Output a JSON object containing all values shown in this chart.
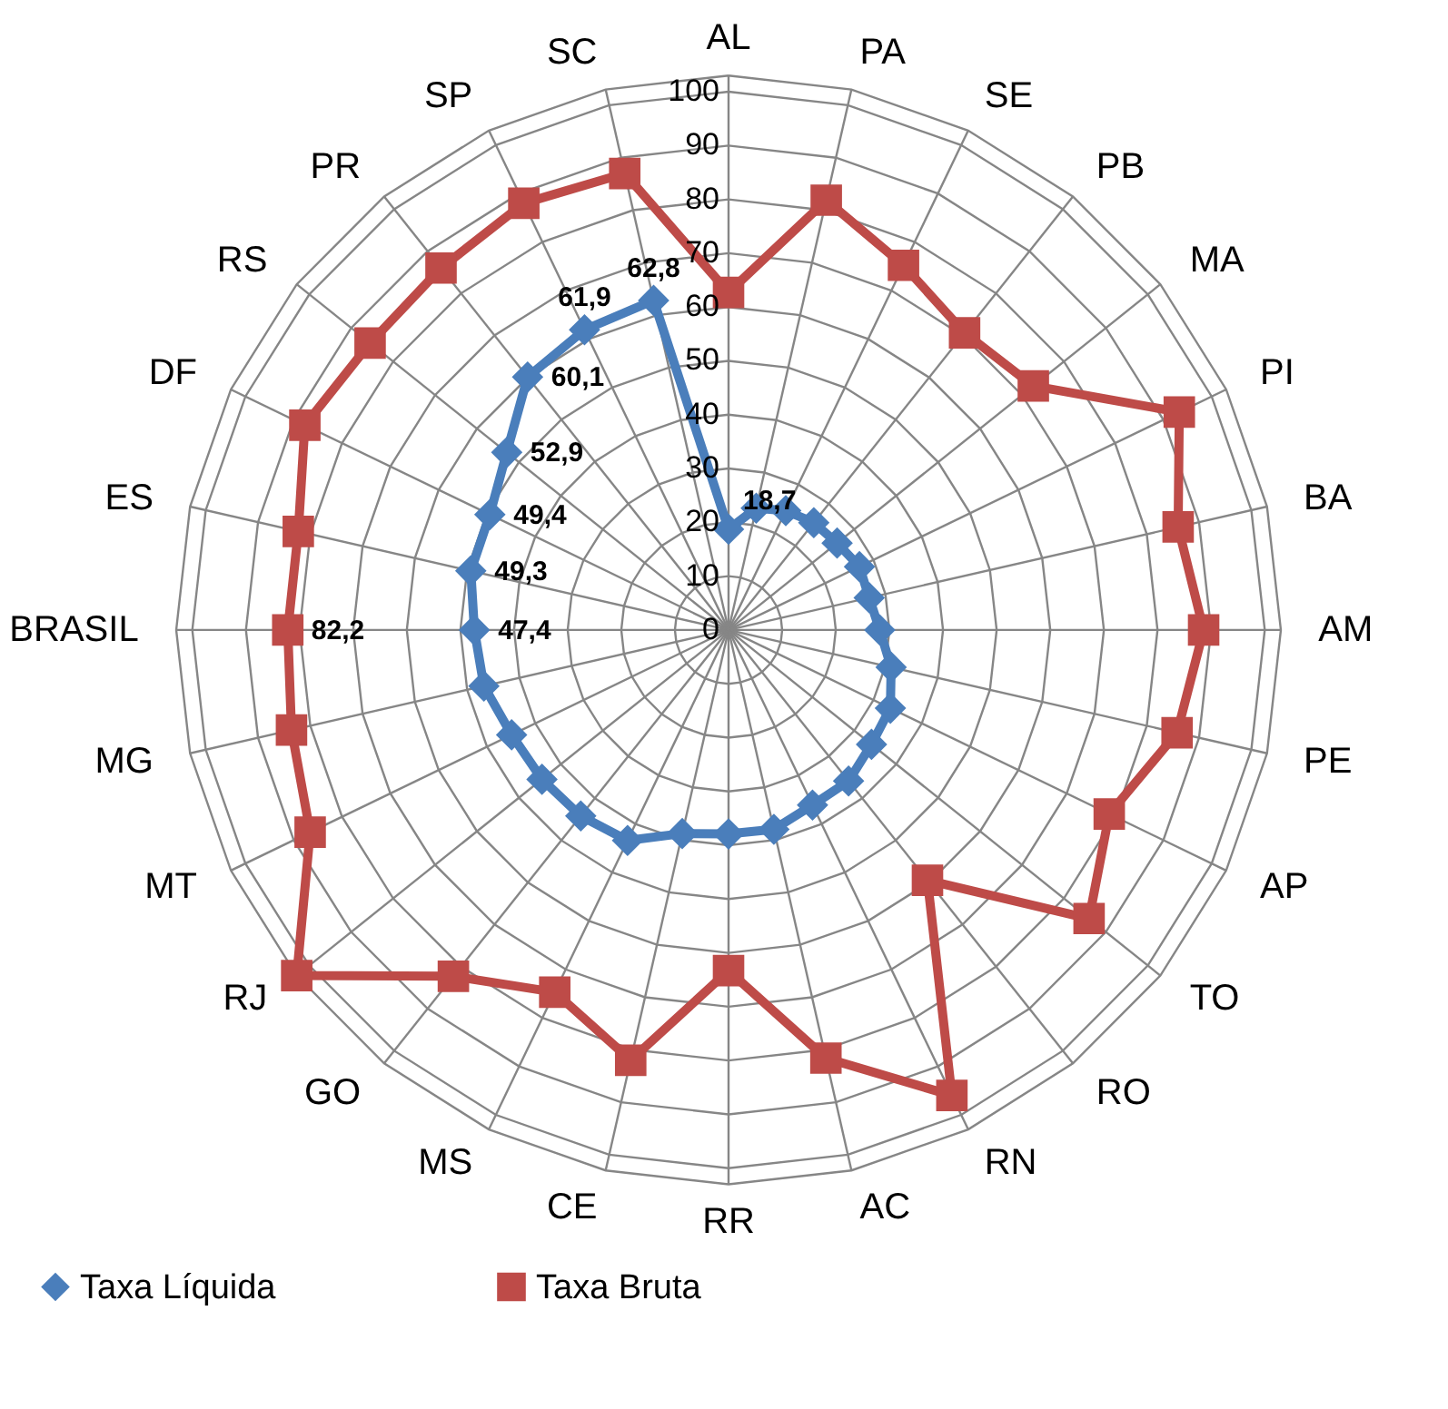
{
  "chart_data": {
    "type": "radar",
    "categories": [
      "AL",
      "PA",
      "SE",
      "PB",
      "MA",
      "PI",
      "BA",
      "AM",
      "PE",
      "AP",
      "TO",
      "RO",
      "RN",
      "AC",
      "RR",
      "CE",
      "MS",
      "GO",
      "RJ",
      "MT",
      "MG",
      "BRASIL",
      "ES",
      "DF",
      "RS",
      "PR",
      "SP",
      "SC"
    ],
    "series": [
      {
        "name": "Taxa Líquida",
        "color": "#4a7ebb",
        "marker": "diamond",
        "values": [
          18.7,
          23.2,
          24.6,
          25.5,
          25.9,
          27.1,
          26.9,
          28.2,
          31.1,
          33.5,
          34.1,
          35.9,
          36.1,
          38,
          37.9,
          38.8,
          43.4,
          44.2,
          44.5,
          44.9,
          46.8,
          47.4,
          49.3,
          49.4,
          52.9,
          60.1,
          61.9,
          62.8
        ],
        "value_labels": [
          "18,7",
          null,
          null,
          null,
          null,
          null,
          null,
          null,
          null,
          null,
          null,
          null,
          null,
          null,
          null,
          null,
          null,
          null,
          null,
          null,
          null,
          "47,4",
          "49,3",
          "49,4",
          "52,9",
          "60,1",
          "61,9",
          "62,8"
        ]
      },
      {
        "name": "Taxa Bruta",
        "color": "#be4b48",
        "marker": "square",
        "values": [
          62.7,
          81.9,
          75.2,
          70.6,
          72.7,
          93.3,
          86,
          88.6,
          85.8,
          78.8,
          86,
          59.5,
          96,
          81.6,
          63.3,
          82,
          74.7,
          82.3,
          103,
          86.6,
          83.6,
          82.2,
          82.3,
          87.7,
          85.5,
          86,
          88,
          87
        ],
        "value_labels": [
          null,
          null,
          null,
          null,
          null,
          null,
          null,
          null,
          null,
          null,
          null,
          null,
          null,
          null,
          null,
          null,
          null,
          null,
          null,
          null,
          null,
          "82,2",
          null,
          null,
          null,
          null,
          null,
          null
        ]
      }
    ],
    "ylim": [
      0,
      103
    ],
    "yticks": [
      0,
      10,
      20,
      30,
      40,
      50,
      60,
      70,
      80,
      90,
      100
    ],
    "grid": true,
    "legend": "bottom"
  }
}
